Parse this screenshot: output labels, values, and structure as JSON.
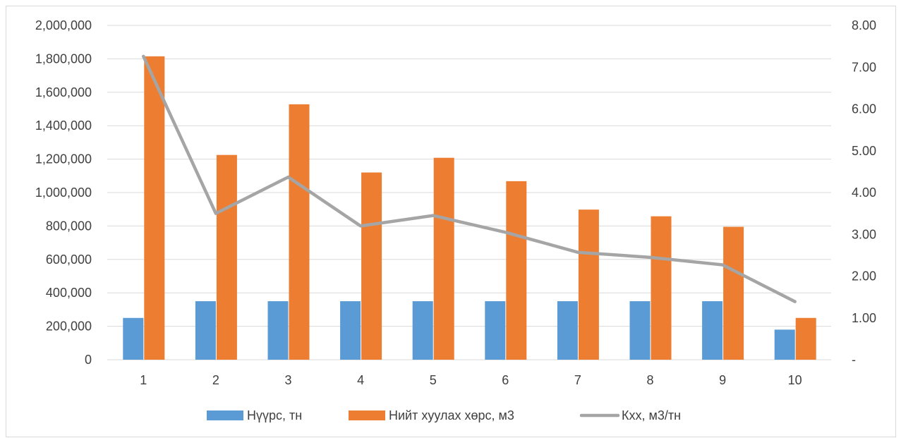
{
  "chart_data": {
    "type": "bar",
    "categories": [
      "1",
      "2",
      "3",
      "4",
      "5",
      "6",
      "7",
      "8",
      "9",
      "10"
    ],
    "series": [
      {
        "name": "Нүүрс, тн",
        "type": "bar",
        "axis": "left",
        "color": "#5b9bd5",
        "values": [
          250000,
          350000,
          350000,
          350000,
          350000,
          350000,
          350000,
          350000,
          350000,
          180000
        ]
      },
      {
        "name": "Нийт хуулах хөрс, м3",
        "type": "bar",
        "axis": "left",
        "color": "#ed7d31",
        "values": [
          1815000,
          1225000,
          1528000,
          1120000,
          1208000,
          1068000,
          898000,
          858000,
          795000,
          250000
        ]
      },
      {
        "name": "Кхх, м3/тн",
        "type": "line",
        "axis": "right",
        "color": "#a5a5a5",
        "values": [
          7.26,
          3.5,
          4.37,
          3.2,
          3.45,
          3.05,
          2.57,
          2.45,
          2.27,
          1.39
        ]
      }
    ],
    "y_left": {
      "ylim": [
        0,
        2000000
      ],
      "ticks": [
        "0",
        "200,000",
        "400,000",
        "600,000",
        "800,000",
        "1,000,000",
        "1,200,000",
        "1,400,000",
        "1,600,000",
        "1,800,000",
        "2,000,000"
      ]
    },
    "y_right": {
      "ylim": [
        0,
        8
      ],
      "ticks": [
        "-",
        "1.00",
        "2.00",
        "3.00",
        "4.00",
        "5.00",
        "6.00",
        "7.00",
        "8.00"
      ]
    },
    "title": "",
    "xlabel": "",
    "ylabel": "",
    "grid": true,
    "legend_position": "bottom"
  }
}
